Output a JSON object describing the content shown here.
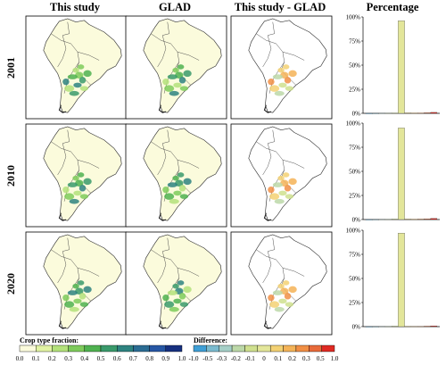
{
  "columns": [
    "This study",
    "GLAD",
    "This study - GLAD",
    "Percentage"
  ],
  "rows": [
    "2001",
    "2010",
    "2020"
  ],
  "legend": {
    "fraction": {
      "title": "Crop type fraction:",
      "ticks": [
        "0.0",
        "0.1",
        "0.2",
        "0.3",
        "0.4",
        "0.5",
        "0.6",
        "0.7",
        "0.8",
        "0.9",
        "1.0"
      ],
      "colors": [
        "#fbfbdc",
        "#e1f3a3",
        "#b3e17a",
        "#7ecb5b",
        "#4fb250",
        "#3a9a6b",
        "#2e8380",
        "#2b6c93",
        "#2656a4",
        "#16307f"
      ]
    },
    "difference": {
      "title": "Difference:",
      "ticks": [
        "-1.0",
        "-0.5",
        "-0.3",
        "-0.2",
        "-0.1",
        "0",
        "0.1",
        "0.2",
        "0.3",
        "0.5",
        "1.0"
      ],
      "colors": [
        "#3f9fd6",
        "#7bbbcf",
        "#a5cfc7",
        "#bcd8a8",
        "#cfe08e",
        "#e3e69a",
        "#f3d173",
        "#f4b357",
        "#f18f45",
        "#e86a3a",
        "#e02a23"
      ]
    }
  },
  "chart_data": {
    "type": "bar",
    "title": "Percentage",
    "ylim": [
      0,
      100
    ],
    "ytick_labels": [
      "0%",
      "25%",
      "50%",
      "75%",
      "100%"
    ],
    "bin_colors": [
      "#3f9fd6",
      "#7bbbcf",
      "#a5cfc7",
      "#bcd8a8",
      "#cfe08e",
      "#e3e69a",
      "#f3d173",
      "#f4b357",
      "#f18f45",
      "#e86a3a",
      "#e02a23"
    ],
    "panels": [
      {
        "year": "2001",
        "values": [
          0.1,
          0.1,
          0.2,
          0.3,
          0.4,
          96.0,
          0.5,
          0.4,
          0.4,
          0.6,
          1.0
        ]
      },
      {
        "year": "2010",
        "values": [
          0.1,
          0.1,
          0.2,
          0.3,
          0.5,
          95.0,
          0.5,
          0.4,
          0.5,
          0.7,
          1.2
        ]
      },
      {
        "year": "2020",
        "values": [
          0.1,
          0.1,
          0.2,
          0.3,
          0.5,
          97.0,
          0.4,
          0.3,
          0.3,
          0.5,
          0.8
        ]
      }
    ]
  }
}
